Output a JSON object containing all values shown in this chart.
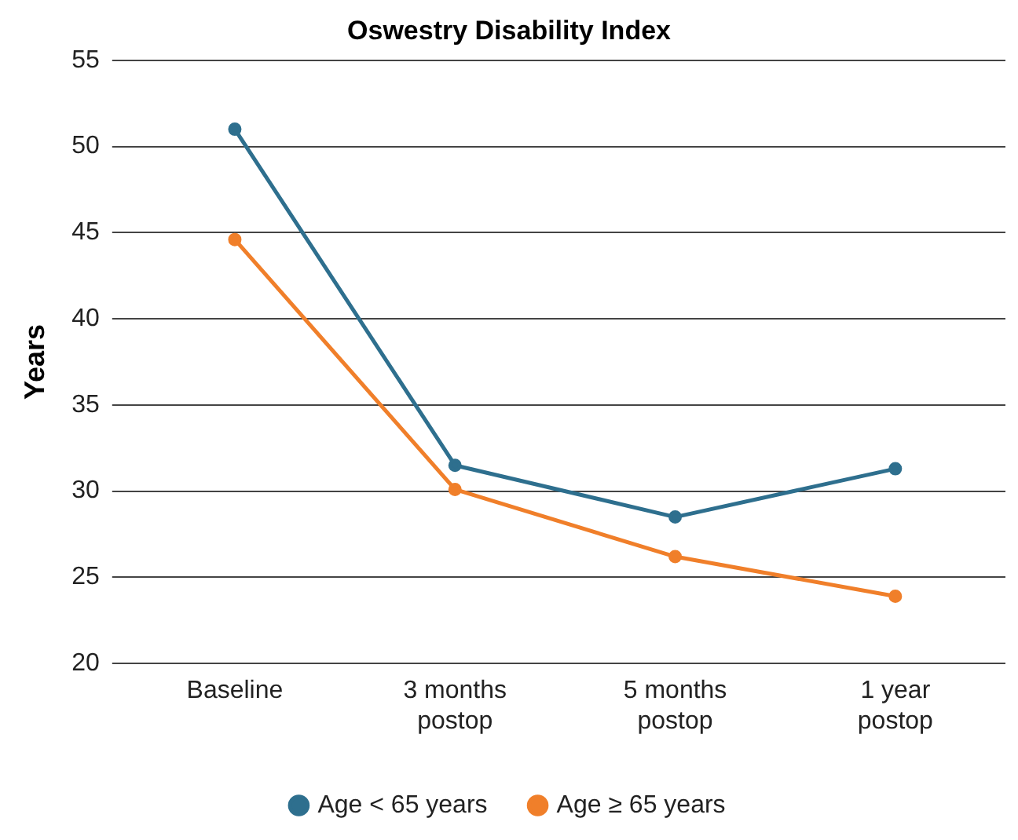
{
  "chart_data": {
    "type": "line",
    "title": "Oswestry Disability Index",
    "ylabel": "Years",
    "categories": [
      "Baseline",
      "3 months postop",
      "5 months postop",
      "1 year postop"
    ],
    "series": [
      {
        "name": "Age < 65 years",
        "color": "#2e6f8e",
        "values": [
          51.0,
          31.5,
          28.5,
          31.3
        ]
      },
      {
        "name": "Age ≥ 65 years",
        "color": "#f07f2a",
        "values": [
          44.6,
          30.1,
          26.2,
          23.9
        ]
      }
    ],
    "ylim": [
      20,
      55
    ],
    "yticks": [
      20,
      25,
      30,
      35,
      40,
      45,
      50,
      55
    ],
    "grid": "y",
    "legend": "bottom",
    "marker": "circle",
    "line_style": "solid"
  }
}
